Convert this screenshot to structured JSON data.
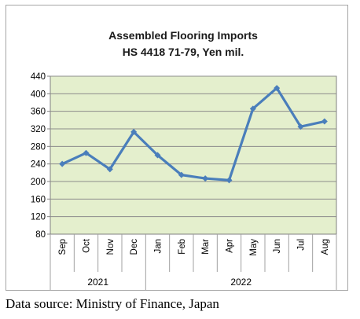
{
  "chart_data": {
    "type": "line",
    "title": [
      "Assembled Flooring Imports",
      "HS 4418 71-79, Yen mil."
    ],
    "xlabel": "",
    "ylabel": "",
    "categories": [
      "Sep",
      "Oct",
      "Nov",
      "Dec",
      "Jan",
      "Feb",
      "Mar",
      "Apr",
      "May",
      "Jun",
      "Jul",
      "Aug"
    ],
    "year_groups": [
      {
        "label": "2021",
        "span": 4
      },
      {
        "label": "2022",
        "span": 8
      }
    ],
    "series": [
      {
        "values": [
          240,
          265,
          228,
          313,
          260,
          215,
          207,
          203,
          366,
          413,
          325,
          337
        ]
      }
    ],
    "ylim": [
      80,
      440
    ],
    "yticks": [
      80,
      120,
      160,
      200,
      240,
      280,
      320,
      360,
      400,
      440
    ],
    "grid": true,
    "colors": {
      "plot_bg": "#e4efcd",
      "line": "#4a7ebb",
      "grid": "#8c8c8c"
    }
  },
  "source": "Data source: Ministry of Finance, Japan"
}
